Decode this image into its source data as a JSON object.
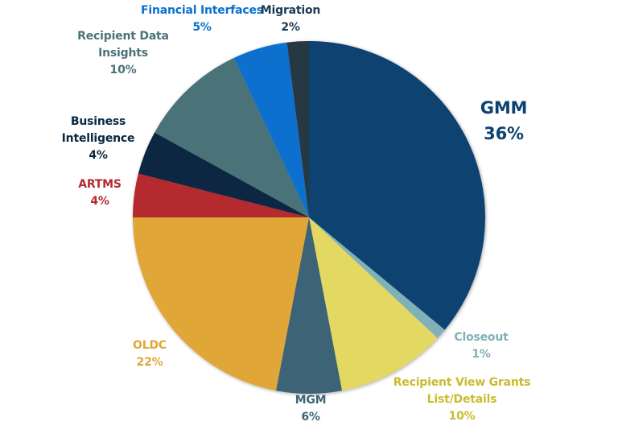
{
  "chart_data": {
    "type": "pie",
    "title": "",
    "start_angle_deg": 0,
    "direction": "clockwise",
    "slices": [
      {
        "name": "GMM",
        "value": 36,
        "label": "36%",
        "color": "#0b4271",
        "label_color": "#0b4271"
      },
      {
        "name": "Closeout",
        "value": 1,
        "label": "1%",
        "color": "#80b0b8",
        "label_color": "#80b0b8"
      },
      {
        "name": "Recipient View Grants List/Details",
        "value": 10,
        "label": "10%",
        "color": "#e2d862",
        "label_color": "#c9bc2e"
      },
      {
        "name": "MGM",
        "value": 6,
        "label": "6%",
        "color": "#3d6476",
        "label_color": "#3d6476"
      },
      {
        "name": "OLDC",
        "value": 22,
        "label": "22%",
        "color": "#e1a638",
        "label_color": "#e1a638"
      },
      {
        "name": "ARTMS",
        "value": 4,
        "label": "4%",
        "color": "#b5292f",
        "label_color": "#b5292f"
      },
      {
        "name": "Business Intelligence",
        "value": 4,
        "label": "4%",
        "color": "#082843",
        "label_color": "#082843"
      },
      {
        "name": "Recipient Data Insights",
        "value": 10,
        "label": "10%",
        "color": "#4a7379",
        "label_color": "#4a7379"
      },
      {
        "name": "Financial Interfaces",
        "value": 5,
        "label": "5%",
        "color": "#0a70cf",
        "label_color": "#0a70cf"
      },
      {
        "name": "Migration",
        "value": 2,
        "label": "2%",
        "color": "#263843",
        "label_color": "#1d3a55"
      }
    ]
  }
}
